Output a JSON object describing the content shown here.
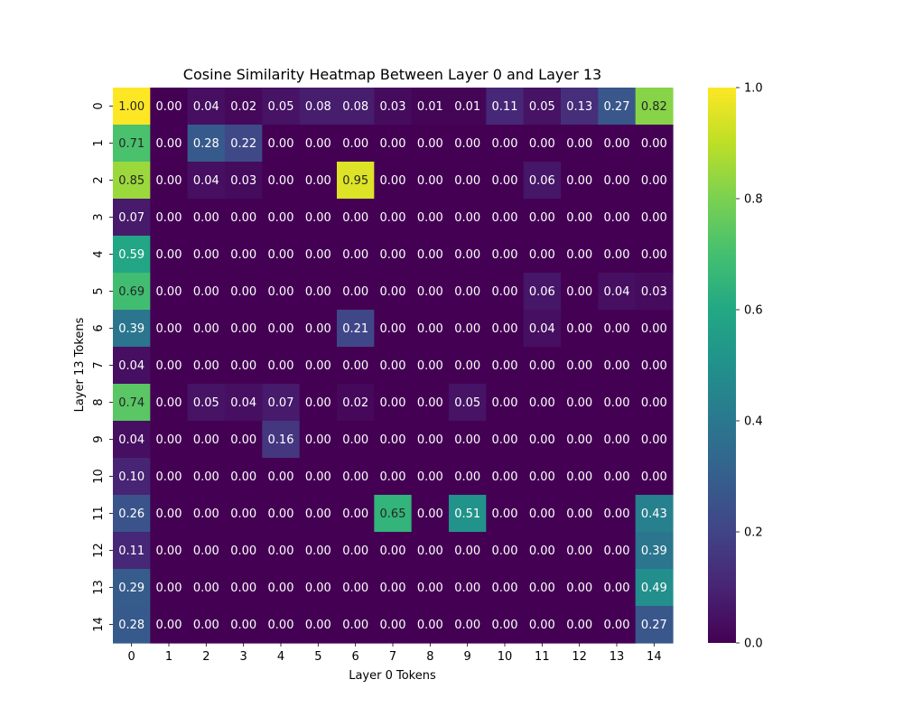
{
  "chart_data": {
    "type": "heatmap",
    "title": "Cosine Similarity Heatmap Between Layer 0 and Layer 13",
    "xlabel": "Layer 0 Tokens",
    "ylabel": "Layer 13 Tokens",
    "x_categories": [
      "0",
      "1",
      "2",
      "3",
      "4",
      "5",
      "6",
      "7",
      "8",
      "9",
      "10",
      "11",
      "12",
      "13",
      "14"
    ],
    "y_categories": [
      "0",
      "1",
      "2",
      "3",
      "4",
      "5",
      "6",
      "7",
      "8",
      "9",
      "10",
      "11",
      "12",
      "13",
      "14"
    ],
    "values": [
      [
        1.0,
        0.0,
        0.04,
        0.02,
        0.05,
        0.08,
        0.08,
        0.03,
        0.01,
        0.01,
        0.11,
        0.05,
        0.13,
        0.27,
        0.82
      ],
      [
        0.71,
        0.0,
        0.28,
        0.22,
        0.0,
        0.0,
        0.0,
        0.0,
        0.0,
        0.0,
        0.0,
        0.0,
        0.0,
        0.0,
        0.0
      ],
      [
        0.85,
        0.0,
        0.04,
        0.03,
        0.0,
        0.0,
        0.95,
        0.0,
        0.0,
        0.0,
        0.0,
        0.06,
        0.0,
        0.0,
        0.0
      ],
      [
        0.07,
        0.0,
        0.0,
        0.0,
        0.0,
        0.0,
        0.0,
        0.0,
        0.0,
        0.0,
        0.0,
        0.0,
        0.0,
        0.0,
        0.0
      ],
      [
        0.59,
        0.0,
        0.0,
        0.0,
        0.0,
        0.0,
        0.0,
        0.0,
        0.0,
        0.0,
        0.0,
        0.0,
        0.0,
        0.0,
        0.0
      ],
      [
        0.69,
        0.0,
        0.0,
        0.0,
        0.0,
        0.0,
        0.0,
        0.0,
        0.0,
        0.0,
        0.0,
        0.06,
        0.0,
        0.04,
        0.03
      ],
      [
        0.39,
        0.0,
        0.0,
        0.0,
        0.0,
        0.0,
        0.21,
        0.0,
        0.0,
        0.0,
        0.0,
        0.04,
        0.0,
        0.0,
        0.0
      ],
      [
        0.04,
        0.0,
        0.0,
        0.0,
        0.0,
        0.0,
        0.0,
        0.0,
        0.0,
        0.0,
        0.0,
        0.0,
        0.0,
        0.0,
        0.0
      ],
      [
        0.74,
        0.0,
        0.05,
        0.04,
        0.07,
        0.0,
        0.02,
        0.0,
        0.0,
        0.05,
        0.0,
        0.0,
        0.0,
        0.0,
        0.0
      ],
      [
        0.04,
        0.0,
        0.0,
        0.0,
        0.16,
        0.0,
        0.0,
        0.0,
        0.0,
        0.0,
        0.0,
        0.0,
        0.0,
        0.0,
        0.0
      ],
      [
        0.1,
        0.0,
        0.0,
        0.0,
        0.0,
        0.0,
        0.0,
        0.0,
        0.0,
        0.0,
        0.0,
        0.0,
        0.0,
        0.0,
        0.0
      ],
      [
        0.26,
        0.0,
        0.0,
        0.0,
        0.0,
        0.0,
        0.0,
        0.65,
        0.0,
        0.51,
        0.0,
        0.0,
        0.0,
        0.0,
        0.43
      ],
      [
        0.11,
        0.0,
        0.0,
        0.0,
        0.0,
        0.0,
        0.0,
        0.0,
        0.0,
        0.0,
        0.0,
        0.0,
        0.0,
        0.0,
        0.39
      ],
      [
        0.29,
        0.0,
        0.0,
        0.0,
        0.0,
        0.0,
        0.0,
        0.0,
        0.0,
        0.0,
        0.0,
        0.0,
        0.0,
        0.0,
        0.49
      ],
      [
        0.28,
        0.0,
        0.0,
        0.0,
        0.0,
        0.0,
        0.0,
        0.0,
        0.0,
        0.0,
        0.0,
        0.0,
        0.0,
        0.0,
        0.27
      ]
    ],
    "value_format_decimals": 2,
    "colormap": "viridis",
    "colorbar": {
      "range": [
        0.0,
        1.0
      ],
      "ticks": [
        0.0,
        0.2,
        0.4,
        0.6,
        0.8,
        1.0
      ],
      "tick_labels": [
        "0.0",
        "0.2",
        "0.4",
        "0.6",
        "0.8",
        "1.0"
      ]
    },
    "annotation_colors": {
      "on_dark": "#ffffff",
      "on_light": "#262626"
    },
    "grid": false,
    "legend": "colorbar-right"
  }
}
